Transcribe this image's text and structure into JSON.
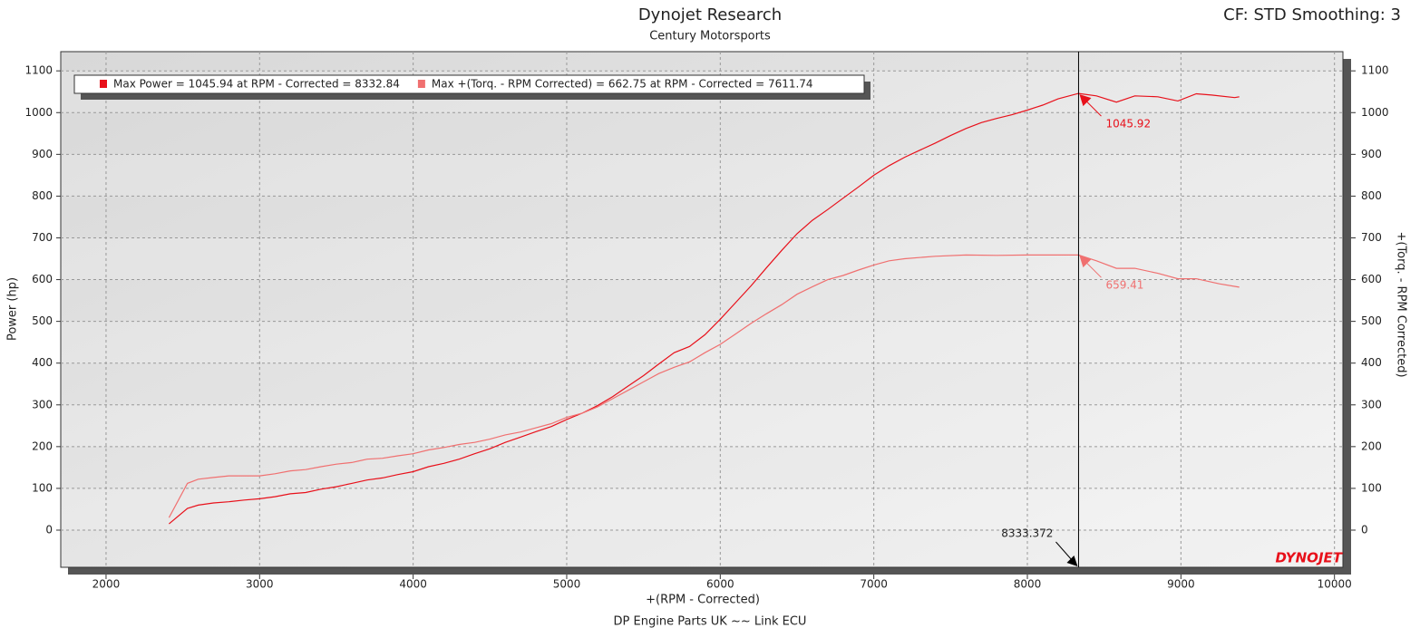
{
  "chart_data": {
    "type": "line",
    "title": "Dynojet Research",
    "subtitle": "Century Motorsports",
    "corner_text": "CF: STD Smoothing: 3",
    "footer": "DP Engine Parts UK ~~ Link ECU",
    "logo": "DYNOJET",
    "x_label": "+(RPM - Corrected)",
    "y_label": "Power (hp)",
    "y2_label": "+(Torq. - RPM Corrected)",
    "xlim": [
      1705,
      10055
    ],
    "xticks": [
      2000,
      3000,
      4000,
      5000,
      6000,
      7000,
      8000,
      9000,
      10000
    ],
    "ylim": [
      -89,
      1146
    ],
    "yticks": [
      0,
      100,
      200,
      300,
      400,
      500,
      600,
      700,
      800,
      900,
      1000,
      1100
    ],
    "y2lim": [
      -89,
      1146
    ],
    "y2ticks": [
      0,
      100,
      200,
      300,
      400,
      500,
      600,
      700,
      800,
      900,
      1000,
      1100
    ],
    "grid": true,
    "legend": "top-left",
    "cursor_x": 8333.372,
    "series": [
      {
        "name": "Max Power = 1045.94 at RPM - Corrected = 8332.84",
        "color": "#e8101a",
        "x": [
          2410,
          2530,
          2600,
          2700,
          2800,
          2900,
          3000,
          3100,
          3200,
          3300,
          3400,
          3500,
          3600,
          3700,
          3800,
          3900,
          4000,
          4100,
          4200,
          4300,
          4400,
          4500,
          4600,
          4700,
          4800,
          4900,
          5000,
          5100,
          5200,
          5300,
          5400,
          5500,
          5600,
          5700,
          5800,
          5900,
          6000,
          6100,
          6200,
          6300,
          6400,
          6500,
          6600,
          6700,
          6800,
          6900,
          7000,
          7100,
          7200,
          7300,
          7400,
          7500,
          7600,
          7700,
          7800,
          7900,
          8000,
          8100,
          8200,
          8333,
          8450,
          8580,
          8700,
          8850,
          8980,
          9100,
          9200,
          9350,
          9380
        ],
        "values": [
          15,
          52,
          60,
          65,
          68,
          72,
          75,
          80,
          87,
          90,
          98,
          104,
          112,
          120,
          125,
          133,
          140,
          152,
          160,
          170,
          183,
          195,
          210,
          223,
          236,
          248,
          265,
          280,
          298,
          320,
          345,
          370,
          398,
          425,
          440,
          468,
          505,
          545,
          585,
          628,
          670,
          710,
          742,
          768,
          795,
          822,
          850,
          873,
          893,
          910,
          927,
          945,
          962,
          976,
          986,
          995,
          1006,
          1018,
          1033,
          1046,
          1040,
          1025,
          1040,
          1038,
          1028,
          1045,
          1042,
          1036,
          1038
        ]
      },
      {
        "name": "Max +(Torq. - RPM Corrected) = 662.75 at RPM - Corrected = 7611.74",
        "color": "#f07070",
        "axis": "y2",
        "x": [
          2410,
          2530,
          2600,
          2700,
          2800,
          2900,
          3000,
          3100,
          3200,
          3300,
          3400,
          3500,
          3600,
          3700,
          3800,
          3900,
          4000,
          4100,
          4200,
          4300,
          4400,
          4500,
          4600,
          4700,
          4800,
          4900,
          5000,
          5100,
          5200,
          5300,
          5400,
          5500,
          5600,
          5700,
          5800,
          5900,
          6000,
          6100,
          6200,
          6300,
          6400,
          6500,
          6600,
          6700,
          6800,
          6900,
          7000,
          7100,
          7200,
          7400,
          7600,
          7800,
          8000,
          8333,
          8450,
          8580,
          8700,
          8850,
          8980,
          9100,
          9250,
          9380
        ],
        "values": [
          30,
          112,
          122,
          126,
          130,
          130,
          130,
          135,
          142,
          145,
          152,
          158,
          162,
          170,
          172,
          178,
          183,
          192,
          198,
          205,
          210,
          218,
          228,
          235,
          245,
          255,
          270,
          280,
          295,
          315,
          335,
          355,
          375,
          390,
          403,
          425,
          445,
          470,
          495,
          518,
          540,
          565,
          583,
          600,
          610,
          623,
          635,
          645,
          650,
          656,
          659,
          658,
          659,
          659,
          645,
          627,
          627,
          615,
          602,
          602,
          590,
          582
        ]
      }
    ],
    "annotations": [
      {
        "x": 8333.372,
        "y": 1045.92,
        "color": "#e8101a"
      },
      {
        "x": 8333.372,
        "y": 659.41,
        "color": "#f07070"
      }
    ]
  }
}
